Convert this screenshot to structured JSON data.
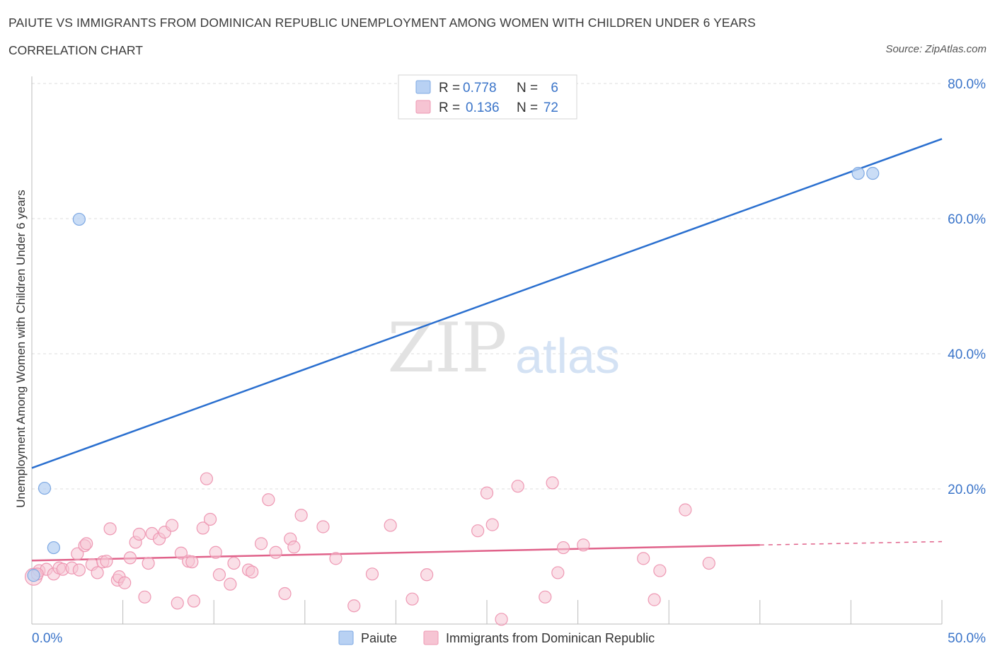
{
  "header": {
    "title": "PAIUTE VS IMMIGRANTS FROM DOMINICAN REPUBLIC UNEMPLOYMENT AMONG WOMEN WITH CHILDREN UNDER 6 YEARS",
    "subtitle": "CORRELATION CHART",
    "source": "Source: ZipAtlas.com"
  },
  "watermark": {
    "zip": "ZIP",
    "atlas": "atlas"
  },
  "colors": {
    "paiute_fill": "#b8d1f3",
    "paiute_stroke": "#7ea9e3",
    "paiute_line": "#2a6fcf",
    "dr_fill": "#f6c4d3",
    "dr_stroke": "#ee98b3",
    "dr_line": "#e0628a",
    "axis_label": "#3a74c9",
    "grid": "#dcdcdc"
  },
  "chart_data": {
    "type": "scatter",
    "title": "PAIUTE VS IMMIGRANTS FROM DOMINICAN REPUBLIC UNEMPLOYMENT AMONG WOMEN WITH CHILDREN UNDER 6 YEARS",
    "xlabel": "",
    "ylabel": "Unemployment Among Women with Children Under 6 years",
    "xlim": [
      0,
      50
    ],
    "ylim": [
      0,
      80
    ],
    "x_tick_labels": [
      "0.0%",
      "50.0%"
    ],
    "y_tick_values": [
      20,
      40,
      60,
      80
    ],
    "y_tick_labels": [
      "20.0%",
      "40.0%",
      "60.0%",
      "80.0%"
    ],
    "legend": {
      "position": "top-center",
      "entries": [
        {
          "r_label": "R =",
          "r_value": "0.778",
          "n_label": "N =",
          "n_value": "6"
        },
        {
          "r_label": "R =",
          "r_value": "0.136",
          "n_label": "N =",
          "n_value": "72"
        }
      ]
    },
    "bottom_legend": [
      "Paiute",
      "Immigrants from Dominican Republic"
    ],
    "series": [
      {
        "name": "Paiute",
        "points": [
          [
            0.1,
            7.2
          ],
          [
            0.7,
            20.1
          ],
          [
            1.2,
            11.3
          ],
          [
            2.6,
            59.9
          ],
          [
            45.4,
            66.7
          ],
          [
            46.2,
            66.7
          ]
        ],
        "trend": {
          "x": [
            0,
            50
          ],
          "y": [
            23.1,
            71.8
          ],
          "style": "solid"
        }
      },
      {
        "name": "Immigrants from Dominican Republic",
        "points": [
          [
            0.1,
            7.0
          ],
          [
            0.4,
            7.9
          ],
          [
            0.8,
            8.1
          ],
          [
            1.2,
            7.4
          ],
          [
            1.5,
            8.3
          ],
          [
            1.7,
            8.1
          ],
          [
            2.2,
            8.3
          ],
          [
            2.5,
            10.4
          ],
          [
            2.6,
            8.0
          ],
          [
            2.9,
            11.6
          ],
          [
            3.0,
            11.9
          ],
          [
            3.3,
            8.8
          ],
          [
            3.6,
            7.6
          ],
          [
            3.9,
            9.2
          ],
          [
            4.1,
            9.3
          ],
          [
            4.3,
            14.1
          ],
          [
            4.7,
            6.5
          ],
          [
            4.8,
            7.0
          ],
          [
            5.1,
            6.1
          ],
          [
            5.4,
            9.8
          ],
          [
            5.7,
            12.1
          ],
          [
            5.9,
            13.3
          ],
          [
            6.2,
            4.0
          ],
          [
            6.4,
            9.0
          ],
          [
            6.6,
            13.4
          ],
          [
            7.0,
            12.6
          ],
          [
            7.3,
            13.6
          ],
          [
            7.7,
            14.6
          ],
          [
            8.0,
            3.1
          ],
          [
            8.2,
            10.5
          ],
          [
            8.6,
            9.3
          ],
          [
            8.8,
            9.2
          ],
          [
            8.9,
            3.4
          ],
          [
            9.4,
            14.2
          ],
          [
            9.6,
            21.5
          ],
          [
            9.8,
            15.5
          ],
          [
            10.1,
            10.6
          ],
          [
            10.3,
            7.3
          ],
          [
            10.9,
            5.9
          ],
          [
            11.1,
            9.0
          ],
          [
            11.9,
            8.0
          ],
          [
            12.1,
            7.7
          ],
          [
            12.6,
            11.9
          ],
          [
            13.0,
            18.4
          ],
          [
            13.4,
            10.6
          ],
          [
            13.9,
            4.5
          ],
          [
            14.2,
            12.6
          ],
          [
            14.4,
            11.4
          ],
          [
            14.8,
            16.1
          ],
          [
            16.0,
            14.4
          ],
          [
            16.7,
            9.7
          ],
          [
            17.7,
            2.7
          ],
          [
            18.7,
            7.4
          ],
          [
            19.7,
            14.6
          ],
          [
            20.9,
            3.7
          ],
          [
            21.7,
            7.3
          ],
          [
            24.5,
            13.8
          ],
          [
            25.0,
            19.4
          ],
          [
            25.3,
            14.7
          ],
          [
            25.8,
            0.7
          ],
          [
            26.7,
            20.4
          ],
          [
            28.2,
            4.0
          ],
          [
            28.6,
            20.9
          ],
          [
            28.9,
            7.6
          ],
          [
            29.2,
            11.3
          ],
          [
            30.3,
            11.7
          ],
          [
            33.6,
            9.7
          ],
          [
            34.2,
            3.6
          ],
          [
            34.5,
            7.9
          ],
          [
            35.9,
            16.9
          ],
          [
            37.2,
            9.0
          ],
          [
            0.3,
            7.4
          ]
        ],
        "trend": {
          "x": [
            0,
            40,
            50
          ],
          "y": [
            9.4,
            11.7,
            12.2
          ],
          "style": "solid-then-dashed",
          "solid_until": 40
        }
      }
    ]
  }
}
